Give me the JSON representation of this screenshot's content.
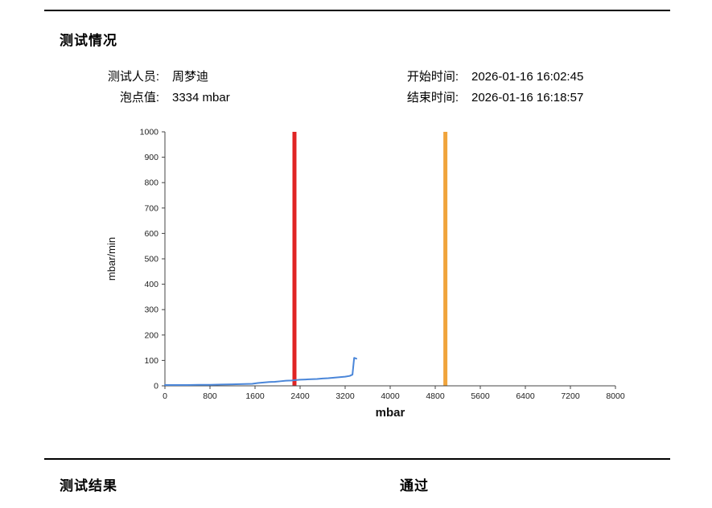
{
  "page": {
    "section_title": "测试情况",
    "fields": {
      "tester_label": "测试人员:",
      "tester_value": "周梦迪",
      "bubble_point_label": "泡点值:",
      "bubble_point_value": "3334 mbar",
      "start_time_label": "开始时间:",
      "start_time_value": "2026-01-16 16:02:45",
      "end_time_label": "结束时间:",
      "end_time_value": "2026-01-16 16:18:57"
    },
    "result": {
      "label": "测试结果",
      "value": "通过"
    }
  },
  "chart_data": {
    "type": "line",
    "title": "",
    "xlabel": "mbar",
    "ylabel": "mbar/min",
    "xlim": [
      0,
      8000
    ],
    "ylim": [
      0,
      1000
    ],
    "x_ticks": [
      0,
      800,
      1600,
      2400,
      3200,
      4000,
      4800,
      5600,
      6400,
      7200,
      8000
    ],
    "y_ticks": [
      0,
      100,
      200,
      300,
      400,
      500,
      600,
      700,
      800,
      900,
      1000
    ],
    "grid": false,
    "legend": "none",
    "axis_color": "#444444",
    "series": [
      {
        "name": "flow-curve",
        "color": "#4a86d9",
        "stroke_width": 2,
        "points": [
          [
            0,
            3
          ],
          [
            200,
            3
          ],
          [
            400,
            3
          ],
          [
            600,
            4
          ],
          [
            800,
            4
          ],
          [
            1000,
            5
          ],
          [
            1200,
            6
          ],
          [
            1400,
            7
          ],
          [
            1550,
            8
          ],
          [
            1650,
            11
          ],
          [
            1750,
            13
          ],
          [
            1850,
            15
          ],
          [
            1950,
            16
          ],
          [
            2050,
            18
          ],
          [
            2150,
            20
          ],
          [
            2250,
            21
          ],
          [
            2300,
            22
          ],
          [
            2400,
            24
          ],
          [
            2500,
            25
          ],
          [
            2600,
            26
          ],
          [
            2700,
            27
          ],
          [
            2800,
            29
          ],
          [
            2900,
            30
          ],
          [
            3000,
            32
          ],
          [
            3100,
            34
          ],
          [
            3200,
            36
          ],
          [
            3280,
            39
          ],
          [
            3330,
            44
          ],
          [
            3360,
            110
          ],
          [
            3400,
            107
          ]
        ]
      }
    ],
    "vlines": [
      {
        "name": "red-marker-line",
        "x": 2300,
        "color": "#e02424",
        "width": 5
      },
      {
        "name": "orange-marker-line",
        "x": 4980,
        "color": "#f0a43c",
        "width": 5
      }
    ]
  }
}
